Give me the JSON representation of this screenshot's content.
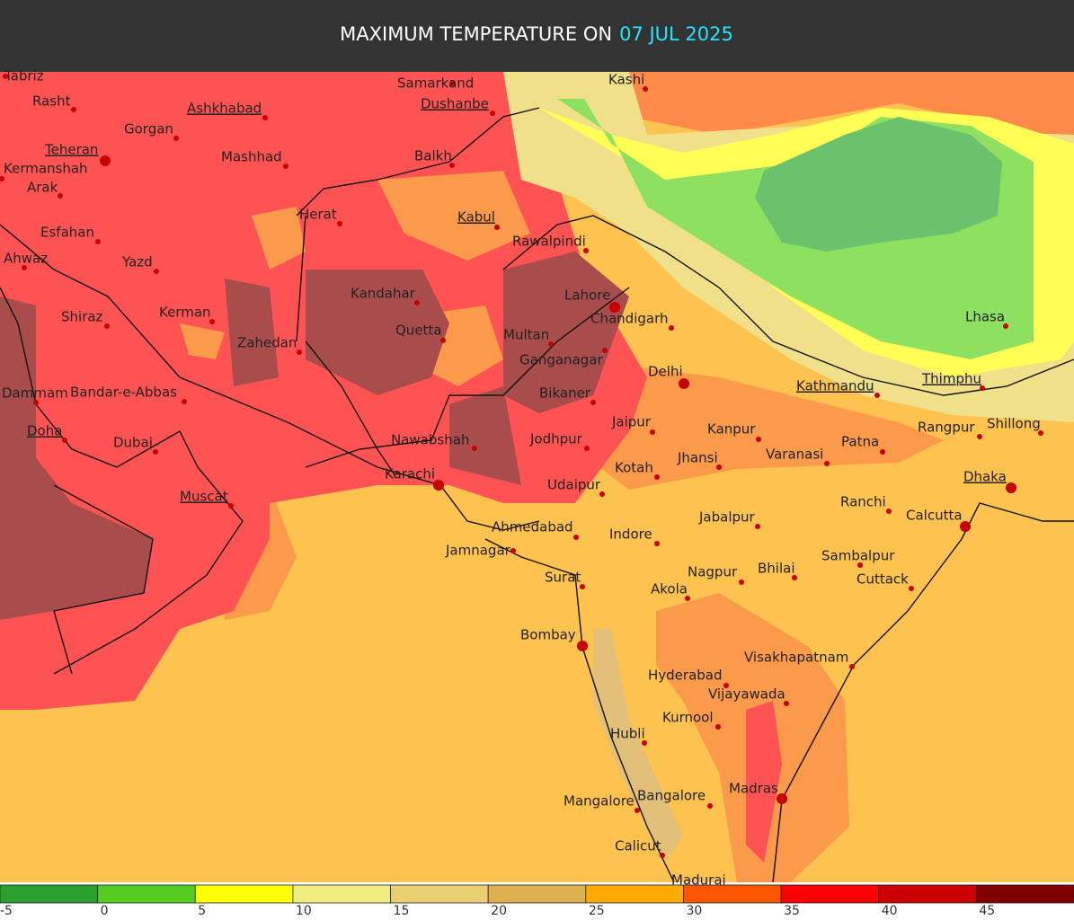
{
  "header": {
    "title": "MAXIMUM TEMPERATURE ON",
    "date": "07 JUL 2025"
  },
  "cities": [
    {
      "name": "Tabriz"
    },
    {
      "name": "Rasht"
    },
    {
      "name": "Gorgan"
    },
    {
      "name": "Ashkhabad",
      "capital": true
    },
    {
      "name": "Samarkand"
    },
    {
      "name": "Dushanbe",
      "capital": true
    },
    {
      "name": "Kashi"
    },
    {
      "name": "Teheran",
      "capital": true
    },
    {
      "name": "Kermanshah"
    },
    {
      "name": "Mashhad"
    },
    {
      "name": "Balkh"
    },
    {
      "name": "Arak"
    },
    {
      "name": "Herat"
    },
    {
      "name": "Kabul",
      "capital": true
    },
    {
      "name": "Esfahan"
    },
    {
      "name": "Rawalpindi"
    },
    {
      "name": "Ahwaz"
    },
    {
      "name": "Yazd"
    },
    {
      "name": "Kandahar"
    },
    {
      "name": "Lahore"
    },
    {
      "name": "Shiraz"
    },
    {
      "name": "Kerman"
    },
    {
      "name": "Chandigarh"
    },
    {
      "name": "Quetta"
    },
    {
      "name": "Multan"
    },
    {
      "name": "Zahedan"
    },
    {
      "name": "Lhasa"
    },
    {
      "name": "Ganganagar"
    },
    {
      "name": "Delhi"
    },
    {
      "name": "Dammam"
    },
    {
      "name": "Bandar-e-Abbas"
    },
    {
      "name": "Bikaner"
    },
    {
      "name": "Kathmandu",
      "capital": true
    },
    {
      "name": "Thimphu",
      "capital": true
    },
    {
      "name": "Jaipur"
    },
    {
      "name": "Kanpur"
    },
    {
      "name": "Rangpur"
    },
    {
      "name": "Shillong"
    },
    {
      "name": "Doha",
      "capital": true
    },
    {
      "name": "Dubai"
    },
    {
      "name": "Nawabshah"
    },
    {
      "name": "Jodhpur"
    },
    {
      "name": "Patna"
    },
    {
      "name": "Varanasi"
    },
    {
      "name": "Jhansi"
    },
    {
      "name": "Kotah"
    },
    {
      "name": "Karachi"
    },
    {
      "name": "Dhaka",
      "capital": true
    },
    {
      "name": "Udaipur"
    },
    {
      "name": "Muscat",
      "capital": true
    },
    {
      "name": "Ranchi"
    },
    {
      "name": "Calcutta"
    },
    {
      "name": "Jabalpur"
    },
    {
      "name": "Ahmedabad"
    },
    {
      "name": "Indore"
    },
    {
      "name": "Jamnagar"
    },
    {
      "name": "Sambalpur"
    },
    {
      "name": "Bhilai"
    },
    {
      "name": "Nagpur"
    },
    {
      "name": "Cuttack"
    },
    {
      "name": "Surat"
    },
    {
      "name": "Akola"
    },
    {
      "name": "Bombay"
    },
    {
      "name": "Visakhapatnam"
    },
    {
      "name": "Hyderabad"
    },
    {
      "name": "Vijayawada"
    },
    {
      "name": "Kurnool"
    },
    {
      "name": "Hubli"
    },
    {
      "name": "Madras"
    },
    {
      "name": "Bangalore"
    },
    {
      "name": "Mangalore"
    },
    {
      "name": "Calicut"
    },
    {
      "name": "Madurai"
    }
  ],
  "legend": {
    "colors": [
      "#2ca02c",
      "#55cc22",
      "#ffff00",
      "#f0ee80",
      "#e8d070",
      "#ddb050",
      "#ffaa00",
      "#ff5500",
      "#ff0000",
      "#cc0000",
      "#800000"
    ],
    "ticks": [
      -5,
      0,
      5,
      10,
      15,
      20,
      25,
      30,
      35,
      40,
      45
    ]
  }
}
